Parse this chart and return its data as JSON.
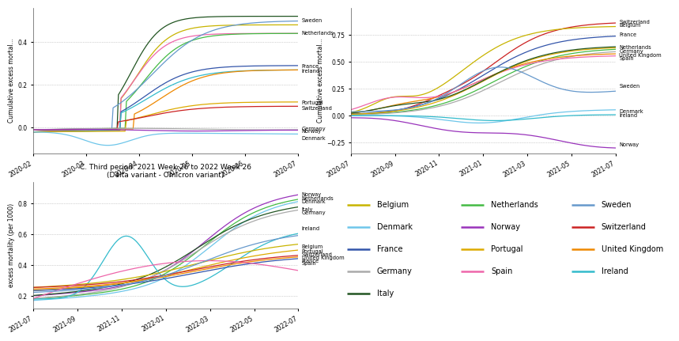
{
  "title_c": "C. Third period: 2021 Week 26 to 2022 Week 26\n(Delta variant - Omicron variant)",
  "ylabel_ab": "Cumulative excess mortal...",
  "ylabel_c": "excess mortality (per 1000)",
  "colors": {
    "Belgium": "#c8b400",
    "Denmark": "#6ec6ea",
    "France": "#3355aa",
    "Germany": "#aaaaaa",
    "Italy": "#225522",
    "Netherlands": "#44bb44",
    "Norway": "#9933bb",
    "Portugal": "#ddaa00",
    "Spain": "#ee66aa",
    "Sweden": "#6699cc",
    "Switzerland": "#cc2222",
    "United Kingdom": "#ee8800",
    "Ireland": "#33bbcc"
  },
  "xlabels_a": [
    "2020-02",
    "2020-03",
    "2020-04",
    "2020-05",
    "2020-06",
    "2020-07"
  ],
  "xlabels_b": [
    "2020-07",
    "2020-09",
    "2020-11",
    "2021-01",
    "2021-03",
    "2021-05",
    "2021-07"
  ],
  "xlabels_c": [
    "2021-07",
    "2021-09",
    "2021-11",
    "2022-01",
    "2022-03",
    "2022-05",
    "2022-07"
  ],
  "legend_rows": [
    [
      "Belgium",
      "Netherlands",
      "Sweden"
    ],
    [
      "Denmark",
      "Norway",
      "Switzerland"
    ],
    [
      "France",
      "Portugal",
      "United Kingdom"
    ],
    [
      "Germany",
      "Spain",
      "Ireland"
    ],
    [
      "Italy",
      "",
      ""
    ]
  ]
}
